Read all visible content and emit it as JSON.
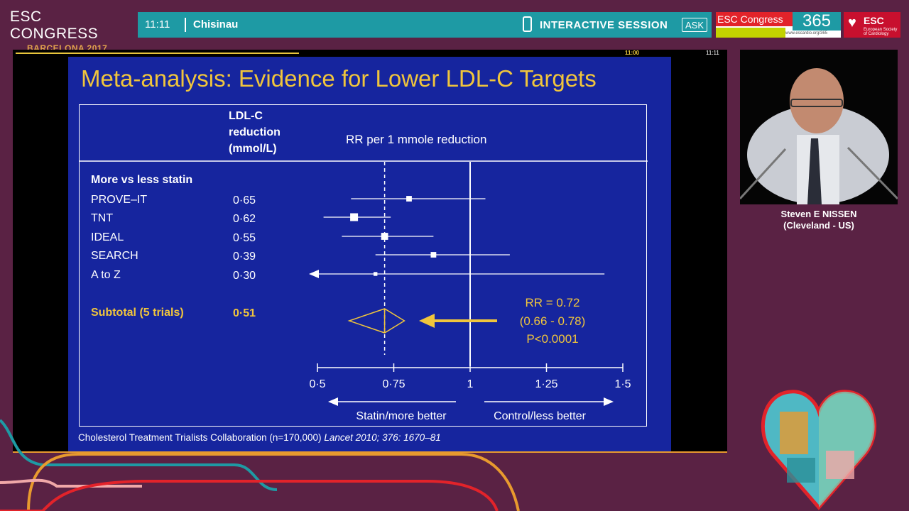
{
  "brand": {
    "line1": "ESC CONGRESS",
    "line2": "BARCELONA 2017"
  },
  "topbar": {
    "time": "11:11",
    "room": "Chisinau",
    "session_label": "INTERACTIVE SESSION",
    "ask_label": "ASK"
  },
  "esc365": {
    "label": "ESC Congress",
    "num": "365",
    "url": "www.escardio.org/365"
  },
  "esc_logo": {
    "name": "ESC",
    "sub1": "European Society",
    "sub2": "of Cardiology"
  },
  "stage": {
    "timer_target": "11:00",
    "timer_now": "11:11",
    "progress": 0.4
  },
  "slide": {
    "title": "Meta-analysis: Evidence for Lower LDL-C Targets",
    "citation_plain": "Cholesterol Treatment Trialists Collaboration (n=170,000) ",
    "citation_italic": "Lancet 2010; 376: 1670–81"
  },
  "speaker": {
    "name": "Steven E NISSEN",
    "location": "(Cleveland - US)"
  },
  "colors": {
    "background": "#5a2244",
    "teal": "#1e9aa4",
    "slide_blue": "#16259e",
    "accent_yellow": "#f0c53c",
    "esc_red": "#c8102e"
  },
  "chart_data": {
    "type": "forest",
    "column_header_line1": "LDL-C",
    "column_header_line2": "reduction",
    "column_header_line3": "(mmol/L)",
    "effect_header": "RR per 1 mmole reduction",
    "group_label": "More vs less statin",
    "xaxis": {
      "ticks": [
        0.5,
        0.75,
        1,
        1.25,
        1.5
      ],
      "tick_labels": [
        "0·5",
        "0·75",
        "1",
        "1·25",
        "1·5"
      ],
      "xlim": [
        0.5,
        1.5
      ],
      "null_value": 1,
      "reference_value": 0.72
    },
    "left_label": "Statin/more better",
    "right_label": "Control/less better",
    "studies": [
      {
        "name": "PROVE–IT",
        "reduction": "0·65",
        "rr": 0.8,
        "lo": 0.61,
        "hi": 1.05,
        "weight": 0.6
      },
      {
        "name": "TNT",
        "reduction": "0·62",
        "rr": 0.62,
        "lo": 0.52,
        "hi": 0.74,
        "weight": 1.0
      },
      {
        "name": "IDEAL",
        "reduction": "0·55",
        "rr": 0.72,
        "lo": 0.58,
        "hi": 0.88,
        "weight": 0.85
      },
      {
        "name": "SEARCH",
        "reduction": "0·39",
        "rr": 0.88,
        "lo": 0.69,
        "hi": 1.13,
        "weight": 0.6
      },
      {
        "name": "A to Z",
        "reduction": "0·30",
        "rr": 0.69,
        "lo": 0.5,
        "hi": 1.44,
        "weight": 0.3,
        "arrow_low": true
      }
    ],
    "subtotal": {
      "name": "Subtotal (5 trials)",
      "reduction": "0·51",
      "rr": 0.72,
      "lo": 0.66,
      "hi": 0.78
    },
    "annotation": {
      "line1": "RR = 0.72",
      "line2": "(0.66 - 0.78)",
      "line3": "P<0.0001"
    }
  }
}
